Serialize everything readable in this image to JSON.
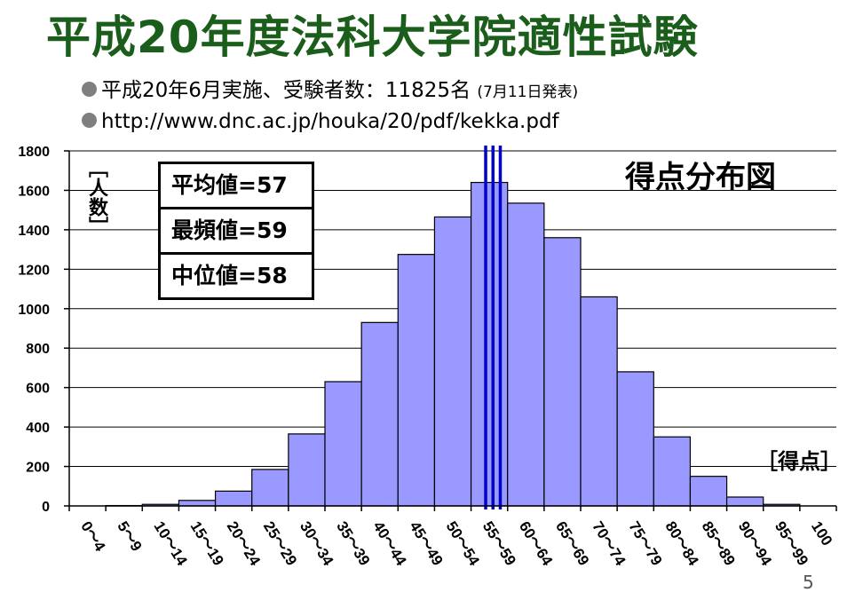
{
  "title": "平成20年度法科大学院適性試験",
  "bullets": {
    "line1_main": "平成20年6月実施、受験者数：11825名",
    "line1_note": "(7月11日発表)",
    "line2": "http://www.dnc.ac.jp/houka/20/pdf/kekka.pdf"
  },
  "page_number": "5",
  "chart_data": {
    "type": "bar",
    "title": "得点分布図",
    "ylabel": "［人数］",
    "xlabel": "［得点］",
    "ylim": [
      0,
      1800
    ],
    "yticks": [
      0,
      200,
      400,
      600,
      800,
      1000,
      1200,
      1400,
      1600,
      1800
    ],
    "categories": [
      "0～4",
      "5～9",
      "10～14",
      "15～19",
      "20～24",
      "25～29",
      "30～34",
      "35～39",
      "40～44",
      "45～49",
      "50～54",
      "55～59",
      "60～64",
      "65～69",
      "70～74",
      "75～79",
      "80～84",
      "85～89",
      "90～94",
      "95～99",
      "100"
    ],
    "values": [
      0,
      2,
      8,
      28,
      75,
      185,
      365,
      630,
      930,
      1275,
      1465,
      1640,
      1535,
      1360,
      1060,
      680,
      350,
      150,
      45,
      8,
      0
    ],
    "grid": true,
    "bar_color": "#9999ff",
    "markers": [
      {
        "label": "平均値=57",
        "value": 57
      },
      {
        "label": "最頻値=59",
        "value": 59
      },
      {
        "label": "中位値=58",
        "value": 58
      }
    ],
    "marker_color": "#0000cc"
  },
  "colors": {
    "title": "#1b5e1b",
    "bullet_dot": "#7f7f7f"
  }
}
